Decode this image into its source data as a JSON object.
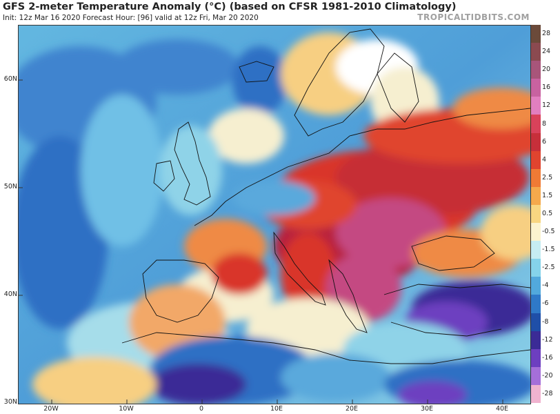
{
  "header": {
    "title": "GFS 2-meter Temperature Anomaly (°C) (based on CFSR 1981-2010 Climatology)",
    "subtitle": "Init: 12z Mar 16 2020   Forecast Hour: [96]   valid at 12z Fri, Mar 20 2020",
    "brand": "TROPICALTIDBITS.COM"
  },
  "map": {
    "lat_labels": [
      "60N",
      "50N",
      "40N",
      "30N"
    ],
    "lon_labels": [
      "20W",
      "10W",
      "0",
      "10E",
      "20E",
      "30E",
      "40E"
    ],
    "colors": {
      "ocean_cold": "#5aa9dc",
      "cold_blue": "#2f6fc4",
      "deep_blue": "#1f3f9a",
      "purple_cold": "#7a4fc8",
      "cool_cyan": "#8fd3e8",
      "neutral": "#f6efd0",
      "warm_yellow": "#f7cf82",
      "orange": "#ef8a45",
      "red": "#d9352b",
      "crimson": "#b8243c",
      "magenta": "#c44a82",
      "land_border": "#111111"
    }
  },
  "colorbar": {
    "labels": [
      "28",
      "24",
      "20",
      "16",
      "12",
      "8",
      "6",
      "4",
      "2.5",
      "1.5",
      "0.5",
      "-0.5",
      "-1.5",
      "-2.5",
      "-4",
      "-6",
      "-8",
      "-12",
      "-16",
      "-20",
      "-28"
    ],
    "colors": [
      "#6b4a3a",
      "#8b4a50",
      "#a8557a",
      "#c862a0",
      "#e27fbf",
      "#d9425a",
      "#c72f3a",
      "#e0442f",
      "#f07a35",
      "#f5a94c",
      "#f8d681",
      "#fbf3cf",
      "#c6ecf2",
      "#85d3ea",
      "#52a9dc",
      "#2f79c8",
      "#1f4fa8",
      "#3b2b96",
      "#6d3fc0",
      "#a56fd9",
      "#f0b3cf"
    ]
  }
}
